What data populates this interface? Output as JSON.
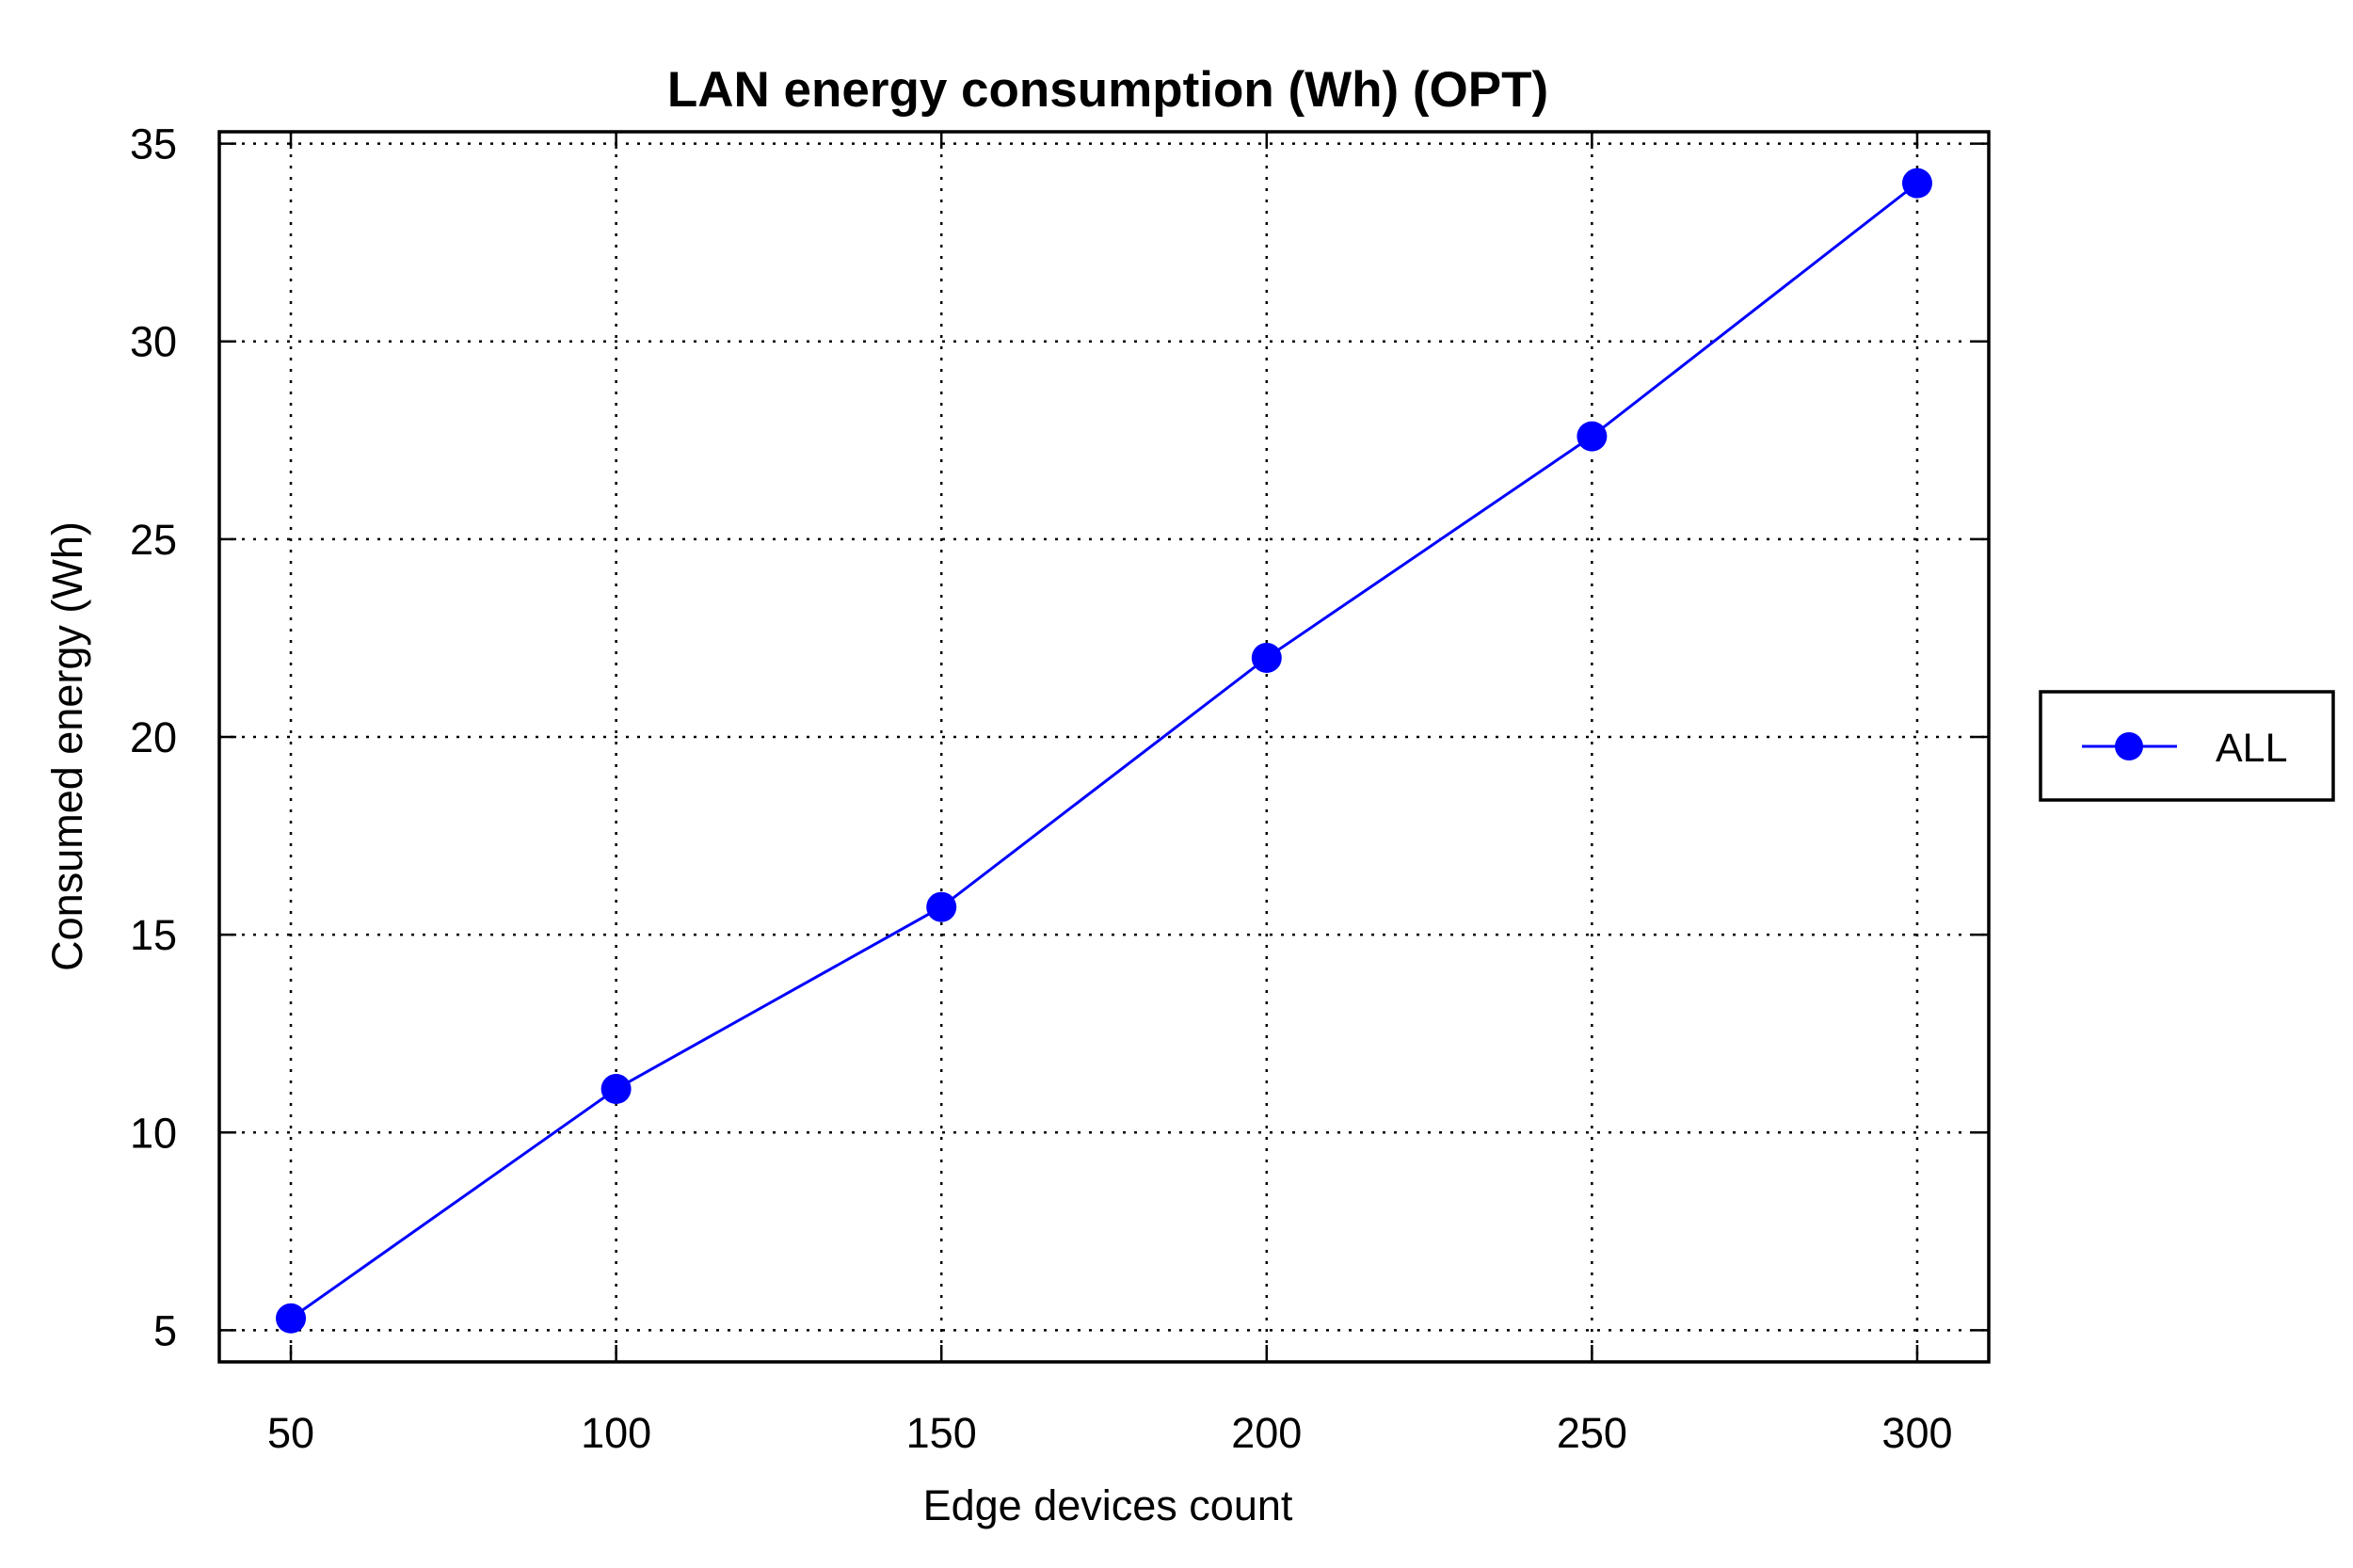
{
  "chart_data": {
    "type": "line",
    "title": "LAN energy consumption (Wh) (OPT)",
    "xlabel": "Edge devices count",
    "ylabel": "Consumed energy (Wh)",
    "x": [
      50,
      100,
      150,
      200,
      250,
      300
    ],
    "xlim": [
      39,
      311
    ],
    "ylim": [
      4.2,
      35.3
    ],
    "xticks": [
      50,
      100,
      150,
      200,
      250,
      300
    ],
    "yticks": [
      5,
      10,
      15,
      20,
      25,
      30,
      35
    ],
    "grid": true,
    "legend_position": "right",
    "series": [
      {
        "name": "ALL",
        "color": "#0000ff",
        "marker": "circle",
        "values": [
          5.3,
          11.1,
          15.7,
          22.0,
          27.6,
          34.0
        ]
      }
    ]
  }
}
